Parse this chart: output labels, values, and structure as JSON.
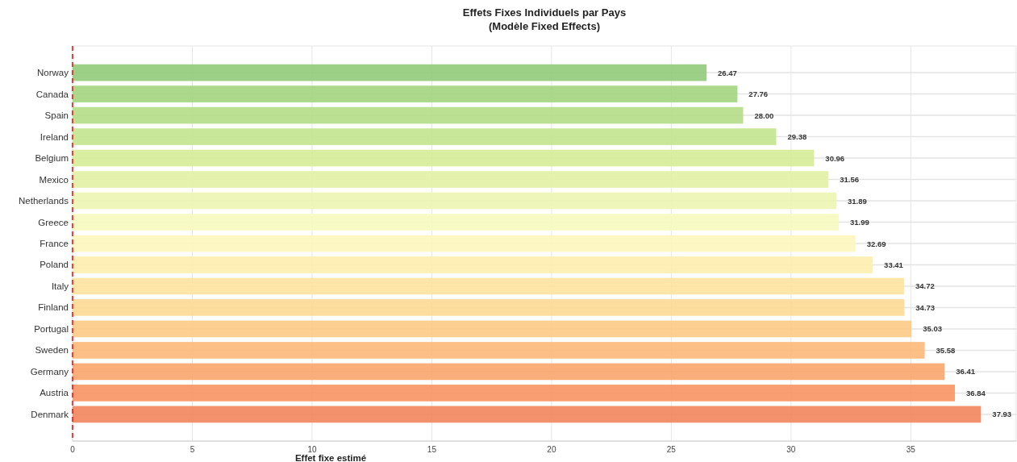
{
  "chart_data": {
    "type": "bar",
    "orientation": "horizontal",
    "title": "Effets Fixes Individuels par Pays",
    "subtitle": "(Modèle Fixed Effects)",
    "xlabel": "Effet fixe estimé",
    "categories": [
      "Norway",
      "Canada",
      "Spain",
      "Ireland",
      "Belgium",
      "Mexico",
      "Netherlands",
      "Greece",
      "France",
      "Poland",
      "Italy",
      "Finland",
      "Portugal",
      "Sweden",
      "Germany",
      "Austria",
      "Denmark"
    ],
    "values": [
      26.47,
      27.76,
      28.0,
      29.38,
      30.96,
      31.56,
      31.89,
      31.99,
      32.69,
      33.41,
      34.72,
      34.73,
      35.03,
      35.58,
      36.41,
      36.84,
      37.93
    ],
    "value_labels": [
      "26.47",
      "27.76",
      "28.00",
      "29.38",
      "30.96",
      "31.56",
      "31.89",
      "31.99",
      "32.69",
      "33.41",
      "34.72",
      "34.73",
      "35.03",
      "35.58",
      "36.41",
      "36.84",
      "37.93"
    ],
    "colors": [
      "#91cb7a",
      "#a2d47e",
      "#b5dd86",
      "#c3e48d",
      "#d6ec98",
      "#e2f1a4",
      "#ecf5b2",
      "#f7fac0",
      "#fdf6bd",
      "#fdedad",
      "#fde39f",
      "#fdd992",
      "#fdcb86",
      "#fcb97a",
      "#faa56c",
      "#f79463",
      "#f2855d"
    ],
    "xlim": [
      0,
      39.4
    ],
    "xticks": [
      0,
      5,
      10,
      15,
      20,
      25,
      30,
      35
    ],
    "grid": true,
    "ref_lines": [
      {
        "axis": "x",
        "value": 0,
        "color": "#ff0000",
        "line_style": "dashed"
      }
    ]
  }
}
